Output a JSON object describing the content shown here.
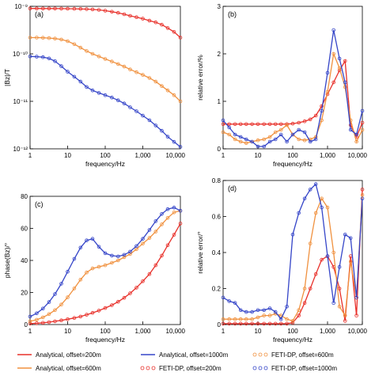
{
  "colors": {
    "red": "#e8302a",
    "orange": "#f0913f",
    "blue": "#3545c8"
  },
  "chart_data": [
    {
      "panel": "(a)",
      "type": "line",
      "xlabel": "frequency/Hz",
      "ylabel": "|Bz|/T",
      "xscale": "log",
      "yscale": "log",
      "xlim": [
        1,
        10000
      ],
      "ylim": [
        1e-12,
        1e-09
      ],
      "xticks": [
        "1",
        "10",
        "100",
        "1,000",
        "10,000"
      ],
      "yticks": [
        "10⁻¹²",
        "10⁻¹¹",
        "10⁻¹⁰",
        "10⁻⁹"
      ],
      "x": [
        1,
        1.5,
        2.2,
        3.2,
        4.6,
        6.8,
        10,
        15,
        22,
        32,
        46,
        68,
        100,
        150,
        220,
        320,
        460,
        680,
        1000,
        1500,
        2200,
        3200,
        4600,
        6800,
        10000
      ],
      "series": [
        {
          "name": "Analytical, offset=200m",
          "color": "red",
          "style": "solid",
          "values": [
            9e-10,
            9e-10,
            8.99e-10,
            8.98e-10,
            8.97e-10,
            8.95e-10,
            8.92e-10,
            8.88e-10,
            8.82e-10,
            8.73e-10,
            8.6e-10,
            8.4e-10,
            8.1e-10,
            7.7e-10,
            7.3e-10,
            6.8e-10,
            6.3e-10,
            5.9e-10,
            5.5e-10,
            5e-10,
            4.6e-10,
            4.1e-10,
            3.5e-10,
            2.9e-10,
            2.2e-10
          ]
        },
        {
          "name": "FETI-DP, offset=200m",
          "color": "red",
          "style": "markers",
          "values": [
            9e-10,
            9e-10,
            8.99e-10,
            8.98e-10,
            8.97e-10,
            8.95e-10,
            8.92e-10,
            8.88e-10,
            8.82e-10,
            8.73e-10,
            8.6e-10,
            8.4e-10,
            8.1e-10,
            7.7e-10,
            7.3e-10,
            6.8e-10,
            6.3e-10,
            5.9e-10,
            5.5e-10,
            5e-10,
            4.6e-10,
            4.1e-10,
            3.5e-10,
            2.9e-10,
            2.2e-10
          ]
        },
        {
          "name": "Analytical, offset=600m",
          "color": "orange",
          "style": "solid",
          "values": [
            2.2e-10,
            2.2e-10,
            2.18e-10,
            2.15e-10,
            2.1e-10,
            2e-10,
            1.85e-10,
            1.6e-10,
            1.35e-10,
            1.15e-10,
            1e-10,
            8.8e-11,
            7.8e-11,
            6.9e-11,
            6.1e-11,
            5.4e-11,
            4.7e-11,
            4.1e-11,
            3.6e-11,
            3.1e-11,
            2.6e-11,
            2.1e-11,
            1.7e-11,
            1.35e-11,
            1e-11
          ]
        },
        {
          "name": "FETI-DP, offset=600m",
          "color": "orange",
          "style": "markers",
          "values": [
            2.2e-10,
            2.2e-10,
            2.18e-10,
            2.15e-10,
            2.1e-10,
            2e-10,
            1.85e-10,
            1.6e-10,
            1.35e-10,
            1.15e-10,
            1e-10,
            8.8e-11,
            7.8e-11,
            6.9e-11,
            6.1e-11,
            5.4e-11,
            4.7e-11,
            4.1e-11,
            3.6e-11,
            3.1e-11,
            2.6e-11,
            2.1e-11,
            1.7e-11,
            1.35e-11,
            1e-11
          ]
        },
        {
          "name": "Analytical, offset=1000m",
          "color": "blue",
          "style": "solid",
          "values": [
            8.8e-11,
            8.7e-11,
            8.5e-11,
            8e-11,
            7e-11,
            5.5e-11,
            4.2e-11,
            3.3e-11,
            2.6e-11,
            2e-11,
            1.7e-11,
            1.5e-11,
            1.35e-11,
            1.2e-11,
            1.05e-11,
            9e-12,
            7.5e-12,
            6.2e-12,
            5e-12,
            4e-12,
            3.1e-12,
            2.4e-12,
            1.8e-12,
            1.4e-12,
            1.1e-12
          ]
        },
        {
          "name": "FETI-DP, offset=1000m",
          "color": "blue",
          "style": "markers",
          "values": [
            8.8e-11,
            8.7e-11,
            8.5e-11,
            8e-11,
            7e-11,
            5.5e-11,
            4.2e-11,
            3.3e-11,
            2.6e-11,
            2e-11,
            1.7e-11,
            1.5e-11,
            1.35e-11,
            1.2e-11,
            1.05e-11,
            9e-12,
            7.5e-12,
            6.2e-12,
            5e-12,
            4e-12,
            3.1e-12,
            2.4e-12,
            1.8e-12,
            1.4e-12,
            1.1e-12
          ]
        }
      ]
    },
    {
      "panel": "(b)",
      "type": "line",
      "xlabel": "frequency/Hz",
      "ylabel": "relative error/%",
      "xscale": "log",
      "yscale": "linear",
      "xlim": [
        1,
        10000
      ],
      "ylim": [
        0,
        3
      ],
      "xticks": [
        "1",
        "10",
        "100",
        "1,000",
        "10,000"
      ],
      "yticks": [
        "0",
        "1",
        "2",
        "3"
      ],
      "x": [
        1,
        1.5,
        2.2,
        3.2,
        4.6,
        6.8,
        10,
        15,
        22,
        32,
        46,
        68,
        100,
        150,
        220,
        320,
        460,
        680,
        1000,
        1500,
        2200,
        3200,
        4600,
        6800,
        10000
      ],
      "series": [
        {
          "name": "offset=200m",
          "color": "red",
          "values": [
            0.52,
            0.52,
            0.52,
            0.52,
            0.52,
            0.52,
            0.52,
            0.52,
            0.52,
            0.52,
            0.52,
            0.52,
            0.53,
            0.55,
            0.58,
            0.62,
            0.7,
            0.9,
            1.15,
            1.4,
            1.65,
            1.85,
            0.5,
            0.25,
            0.55
          ]
        },
        {
          "name": "offset=600m",
          "color": "orange",
          "values": [
            0.35,
            0.3,
            0.2,
            0.15,
            0.12,
            0.15,
            0.18,
            0.2,
            0.25,
            0.35,
            0.4,
            0.5,
            0.3,
            0.2,
            0.18,
            0.2,
            0.25,
            0.6,
            1.2,
            2.0,
            1.7,
            1.3,
            0.6,
            0.15,
            0.4
          ]
        },
        {
          "name": "offset=1000m",
          "color": "blue",
          "values": [
            0.6,
            0.45,
            0.3,
            0.25,
            0.2,
            0.15,
            0.05,
            0.05,
            0.15,
            0.2,
            0.3,
            0.15,
            0.3,
            0.4,
            0.35,
            0.15,
            0.2,
            0.8,
            1.6,
            2.5,
            1.9,
            1.4,
            0.4,
            0.3,
            0.8
          ]
        }
      ]
    },
    {
      "panel": "(c)",
      "type": "line",
      "xlabel": "frequency/Hz",
      "ylabel": "phase(Bz)/°",
      "xscale": "log",
      "yscale": "linear",
      "xlim": [
        1,
        10000
      ],
      "ylim": [
        0,
        80
      ],
      "xticks": [
        "1",
        "10",
        "100",
        "1,000",
        "10,000"
      ],
      "yticks": [
        "0",
        "20",
        "40",
        "60",
        "80"
      ],
      "x": [
        1,
        1.5,
        2.2,
        3.2,
        4.6,
        6.8,
        10,
        15,
        22,
        32,
        46,
        68,
        100,
        150,
        220,
        320,
        460,
        680,
        1000,
        1500,
        2200,
        3200,
        4600,
        6800,
        10000
      ],
      "series": [
        {
          "name": "offset=200m",
          "color": "red",
          "values": [
            0.6,
            0.8,
            1.1,
            1.5,
            2.0,
            2.6,
            3.3,
            4.1,
            5.0,
            6.1,
            7.3,
            8.7,
            10.3,
            12.1,
            14.2,
            16.7,
            19.5,
            23.0,
            27.0,
            31.5,
            37.0,
            43.0,
            49.5,
            56.0,
            63.0
          ]
        },
        {
          "name": "offset=600m",
          "color": "orange",
          "values": [
            2.0,
            3.0,
            4.5,
            6.5,
            9.0,
            12.5,
            17.0,
            22.5,
            28.0,
            32.5,
            35.0,
            36.0,
            37.0,
            38.5,
            40.0,
            42.0,
            44.0,
            47.0,
            50.5,
            54.0,
            58.0,
            62.5,
            66.5,
            70.0,
            71.0
          ]
        },
        {
          "name": "offset=1000m",
          "color": "blue",
          "values": [
            5.0,
            7.0,
            10.0,
            14.0,
            19.0,
            25.5,
            33.0,
            41.0,
            48.0,
            52.5,
            53.5,
            48.5,
            44.5,
            43.0,
            42.5,
            43.5,
            45.5,
            49.0,
            53.5,
            59.0,
            64.5,
            69.0,
            72.0,
            73.0,
            71.0
          ]
        }
      ]
    },
    {
      "panel": "(d)",
      "type": "line",
      "xlabel": "frequency/Hz",
      "ylabel": "relative error/°",
      "xscale": "log",
      "yscale": "linear",
      "xlim": [
        1,
        10000
      ],
      "ylim": [
        0,
        0.8
      ],
      "xticks": [
        "1",
        "10",
        "100",
        "1,000",
        "10,000"
      ],
      "yticks": [
        "0",
        "0.2",
        "0.4",
        "0.6",
        "0.8"
      ],
      "x": [
        1,
        1.5,
        2.2,
        3.2,
        4.6,
        6.8,
        10,
        15,
        22,
        32,
        46,
        68,
        100,
        150,
        220,
        320,
        460,
        680,
        1000,
        1500,
        2200,
        3200,
        4600,
        6800,
        10000
      ],
      "series": [
        {
          "name": "offset=200m",
          "color": "red",
          "values": [
            0.005,
            0.005,
            0.005,
            0.005,
            0.005,
            0.005,
            0.005,
            0.005,
            0.005,
            0.005,
            0.005,
            0.005,
            0.01,
            0.05,
            0.12,
            0.2,
            0.28,
            0.36,
            0.38,
            0.32,
            0.2,
            0.02,
            0.38,
            0.05,
            0.75
          ]
        },
        {
          "name": "offset=600m",
          "color": "orange",
          "values": [
            0.03,
            0.03,
            0.03,
            0.03,
            0.03,
            0.03,
            0.04,
            0.05,
            0.05,
            0.06,
            0.05,
            0.03,
            0.02,
            0.08,
            0.2,
            0.45,
            0.62,
            0.7,
            0.65,
            0.4,
            0.1,
            0.05,
            0.35,
            0.15,
            0.72
          ]
        },
        {
          "name": "offset=1000m",
          "color": "blue",
          "values": [
            0.15,
            0.13,
            0.12,
            0.08,
            0.07,
            0.07,
            0.08,
            0.08,
            0.09,
            0.07,
            0.03,
            0.1,
            0.5,
            0.62,
            0.7,
            0.75,
            0.78,
            0.65,
            0.38,
            0.12,
            0.32,
            0.5,
            0.48,
            0.15,
            0.7
          ]
        }
      ]
    }
  ],
  "legend": [
    {
      "label": "Analytical, offset=200m",
      "color": "red",
      "style": "solid"
    },
    {
      "label": "Analytical, offset=1000m",
      "color": "blue",
      "style": "solid"
    },
    {
      "label": "FETI-DP, offset=600m",
      "color": "orange",
      "style": "markers"
    },
    {
      "label": "Analytical, offset=600m",
      "color": "orange",
      "style": "solid"
    },
    {
      "label": "FETI-DP, offset=200m",
      "color": "red",
      "style": "markers"
    },
    {
      "label": "FETI-DP, offset=1000m",
      "color": "blue",
      "style": "markers"
    }
  ]
}
